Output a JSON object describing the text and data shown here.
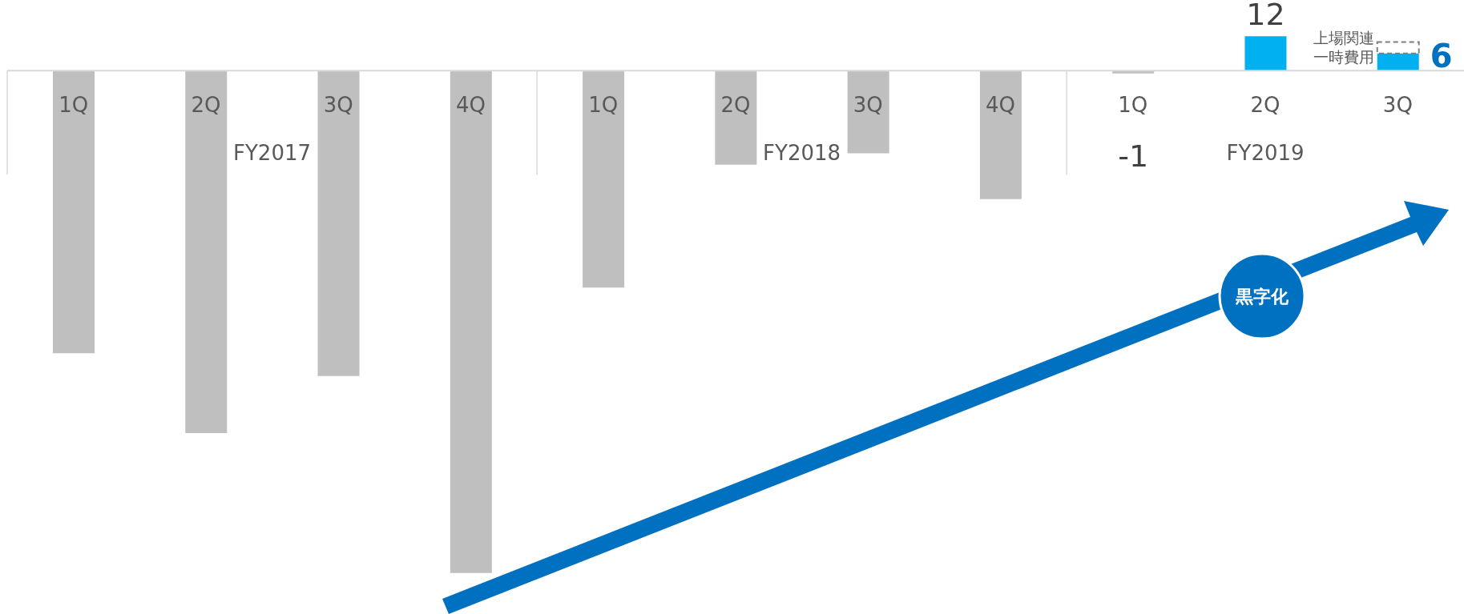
{
  "chart_data": {
    "type": "bar",
    "stacked": true,
    "tick_labels": "x",
    "categories": [
      "1Q",
      "2Q",
      "3Q",
      "4Q",
      "1Q",
      "2Q",
      "3Q",
      "4Q",
      "1Q",
      "2Q",
      "3Q"
    ],
    "series": [
      {
        "colors": [
          "#bfbfbf",
          "#bfbfbf",
          "#bfbfbf",
          "#bfbfbf",
          "#bfbfbf",
          "#bfbfbf",
          "#bfbfbf",
          "#bfbfbf",
          "#bfbfbf",
          "#00b0f0",
          "#00b0f0"
        ],
        "values": [
          -99,
          -127,
          -107,
          -176,
          -76,
          -33,
          -29,
          -45,
          -1,
          12,
          6
        ],
        "value_labels": [
          null,
          null,
          null,
          null,
          null,
          null,
          null,
          null,
          "-1",
          "12",
          "6"
        ]
      },
      {
        "name": "上場関連一時費用",
        "color": "#7f7f7f",
        "line_style": "dashed",
        "values": [
          null,
          null,
          null,
          null,
          null,
          null,
          null,
          null,
          null,
          null,
          4
        ]
      }
    ],
    "annotations": [
      "FY2017",
      "FY2018",
      "FY2019",
      "黒字化"
    ]
  }
}
